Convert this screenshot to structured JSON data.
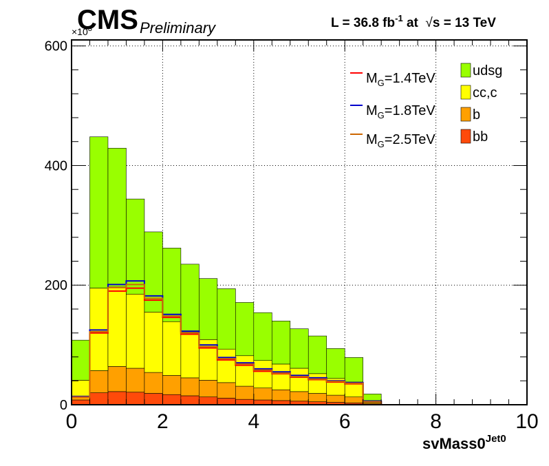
{
  "header": {
    "experiment": "CMS",
    "status": "Preliminary",
    "lumi_prefix": "L = 36.8 fb",
    "lumi_exponent": "-1",
    "lumi_mid": " at  ",
    "sqrt_symbol": "√",
    "energy": "s = 13 TeV"
  },
  "chart_data": {
    "type": "histogram-stacked",
    "xlabel_main": "svMass0",
    "xlabel_sup": "Jet0",
    "y_multiplier_base": "×10",
    "y_multiplier_exp": "3",
    "xlim": [
      0,
      10
    ],
    "ylim": [
      0,
      610
    ],
    "x_ticks": [
      "0",
      "2",
      "4",
      "6",
      "8",
      "10"
    ],
    "y_ticks": [
      "0",
      "200",
      "400",
      "600"
    ],
    "grid": true,
    "legend_placement": "top-right",
    "bin_edges": [
      0,
      0.4,
      0.8,
      1.2,
      1.6,
      2.0,
      2.4,
      2.8,
      3.2,
      3.6,
      4.0,
      4.4,
      4.8,
      5.2,
      5.6,
      6.0,
      6.4,
      6.8,
      7.2,
      7.6,
      8.0,
      8.4,
      8.8,
      9.2,
      9.6,
      10.0
    ],
    "stack": [
      {
        "name": "bb",
        "color": "#ff4a0a",
        "values": [
          8,
          20,
          22,
          21,
          19,
          17,
          15,
          13,
          11,
          9,
          8,
          7,
          6,
          5,
          4,
          3,
          1,
          0,
          0,
          0,
          0,
          0,
          0,
          0,
          0
        ]
      },
      {
        "name": "b",
        "color": "#ffa000",
        "values": [
          5,
          37,
          42,
          40,
          35,
          32,
          30,
          28,
          26,
          22,
          20,
          18,
          16,
          14,
          12,
          10,
          2,
          0,
          0,
          0,
          0,
          0,
          0,
          0,
          0
        ]
      },
      {
        "name": "cc,c",
        "color": "#ffff00",
        "values": [
          28,
          138,
          133,
          124,
          101,
          90,
          77,
          68,
          56,
          51,
          46,
          43,
          39,
          33,
          28,
          25,
          4,
          0,
          0,
          0,
          0,
          0,
          0,
          0,
          0
        ]
      },
      {
        "name": "udsg",
        "color": "#99ff00",
        "values": [
          67,
          253,
          232,
          159,
          134,
          123,
          113,
          102,
          101,
          89,
          80,
          72,
          66,
          63,
          50,
          41,
          11,
          0,
          0,
          0,
          0,
          0,
          0,
          0,
          0
        ]
      }
    ],
    "lines": [
      {
        "label_main": "M",
        "label_sub": "G",
        "label_rest": "=1.4TeV",
        "color": "#ff0000",
        "values": [
          13,
          120,
          190,
          195,
          175,
          146,
          118,
          95,
          75,
          66,
          56,
          52,
          46,
          42,
          38,
          35,
          5,
          0,
          0,
          0,
          0,
          0,
          0,
          0,
          0
        ]
      },
      {
        "label_main": "M",
        "label_sub": "G",
        "label_rest": "=1.8TeV",
        "color": "#0000cc",
        "values": [
          14,
          125,
          201,
          207,
          182,
          151,
          123,
          100,
          79,
          70,
          60,
          55,
          49,
          45,
          40,
          37,
          6,
          0,
          0,
          0,
          0,
          0,
          0,
          0,
          0
        ]
      },
      {
        "label_main": "M",
        "label_sub": "G",
        "label_rest": "=2.5TeV",
        "color": "#cc6600",
        "values": [
          13,
          122,
          196,
          201,
          178,
          148,
          120,
          97,
          77,
          68,
          58,
          53,
          47,
          43,
          39,
          36,
          5,
          0,
          0,
          0,
          0,
          0,
          0,
          0,
          0
        ]
      }
    ]
  }
}
